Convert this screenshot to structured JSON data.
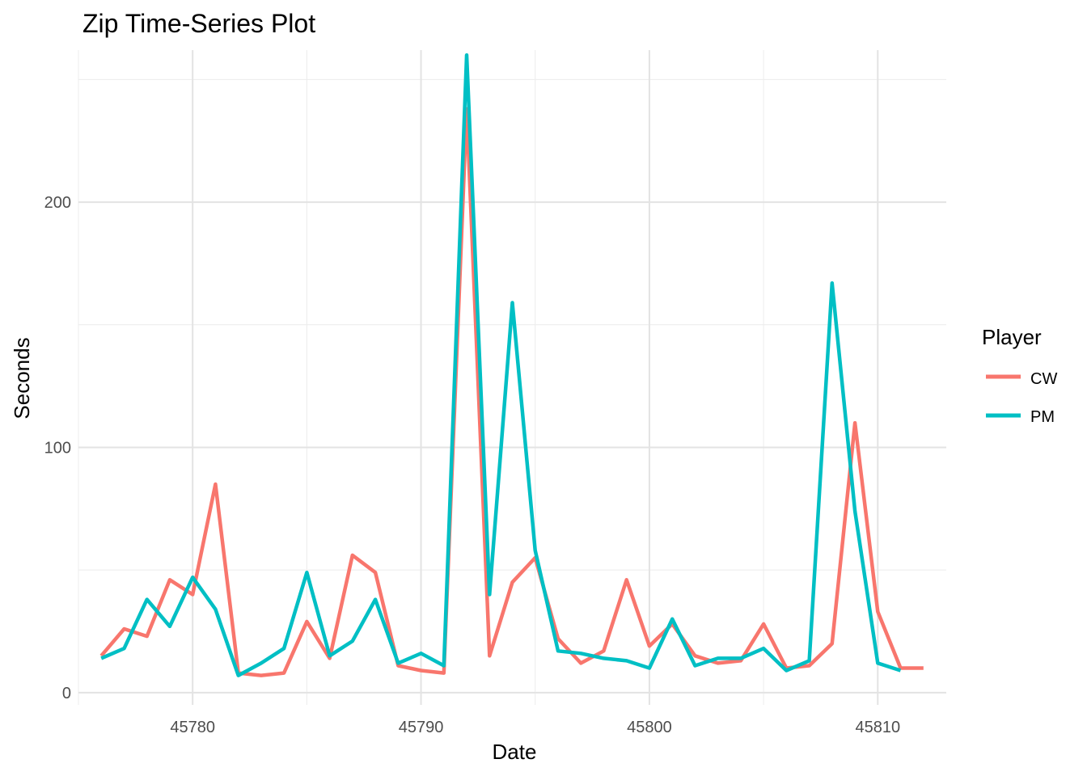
{
  "chart_data": {
    "type": "line",
    "title": "Zip Time-Series Plot",
    "xlabel": "Date",
    "ylabel": "Seconds",
    "xlim": [
      45775,
      45813
    ],
    "ylim": [
      -5,
      262
    ],
    "x_ticks": [
      45780,
      45790,
      45800,
      45810
    ],
    "y_ticks": [
      0,
      100,
      200
    ],
    "grid": true,
    "legend": {
      "title": "Player",
      "position": "right"
    },
    "series": [
      {
        "name": "CW",
        "color": "#F8766D",
        "x": [
          45776,
          45777,
          45778,
          45779,
          45780,
          45781,
          45782,
          45783,
          45784,
          45785,
          45786,
          45787,
          45788,
          45789,
          45790,
          45791,
          45792,
          45793,
          45794,
          45795,
          45796,
          45797,
          45798,
          45799,
          45800,
          45801,
          45802,
          45803,
          45804,
          45805,
          45806,
          45807,
          45808,
          45809,
          45810,
          45811,
          45812
        ],
        "y": [
          15,
          26,
          23,
          46,
          40,
          85,
          8,
          7,
          8,
          29,
          14,
          56,
          49,
          11,
          9,
          8,
          238,
          15,
          45,
          55,
          22,
          12,
          17,
          46,
          19,
          28,
          15,
          12,
          13,
          28,
          10,
          11,
          20,
          110,
          33,
          10,
          10
        ]
      },
      {
        "name": "PM",
        "color": "#00BFC4",
        "x": [
          45776,
          45777,
          45778,
          45779,
          45780,
          45781,
          45782,
          45783,
          45784,
          45785,
          45786,
          45787,
          45788,
          45789,
          45790,
          45791,
          45792,
          45793,
          45794,
          45795,
          45796,
          45797,
          45798,
          45799,
          45800,
          45801,
          45802,
          45803,
          45804,
          45805,
          45806,
          45807,
          45808,
          45809,
          45810,
          45811
        ],
        "y": [
          14,
          18,
          38,
          27,
          47,
          34,
          7,
          12,
          18,
          49,
          15,
          21,
          38,
          12,
          16,
          11,
          260,
          40,
          159,
          58,
          17,
          16,
          14,
          13,
          10,
          30,
          11,
          14,
          14,
          18,
          9,
          13,
          167,
          74,
          12,
          9
        ]
      }
    ]
  }
}
